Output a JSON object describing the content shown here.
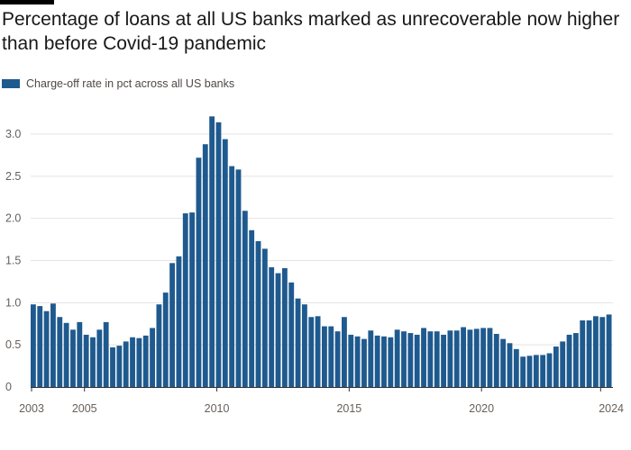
{
  "title": "Percentage of loans at all US banks marked as unrecoverable now higher than before Covid-19 pandemic",
  "accent_color": "#1f5a8f",
  "chart_data": {
    "type": "bar",
    "legend": "Charge-off rate in pct across all US banks",
    "legend_position": "top-left",
    "grid": true,
    "xlabel": "",
    "ylabel": "",
    "ylim": [
      0,
      3.2
    ],
    "yticks": [
      0,
      0.5,
      1.0,
      1.5,
      2.0,
      2.5,
      3.0
    ],
    "ytick_labels": [
      "0",
      "0.5",
      "1.0",
      "1.5",
      "2.0",
      "2.5",
      "3.0"
    ],
    "xticks": [
      {
        "year": 2003,
        "label": "2003"
      },
      {
        "year": 2005,
        "label": "2005"
      },
      {
        "year": 2010,
        "label": "2010"
      },
      {
        "year": 2015,
        "label": "2015"
      },
      {
        "year": 2020,
        "label": "2020"
      },
      {
        "year": 2024,
        "label": "2024"
      }
    ],
    "start_quarter": "2003 Q1",
    "series": [
      {
        "name": "Charge-off rate in pct across all US banks",
        "values": [
          0.98,
          0.96,
          0.9,
          0.99,
          0.83,
          0.76,
          0.68,
          0.77,
          0.62,
          0.59,
          0.68,
          0.77,
          0.47,
          0.49,
          0.54,
          0.59,
          0.58,
          0.61,
          0.7,
          0.98,
          1.12,
          1.47,
          1.55,
          2.06,
          2.07,
          2.72,
          2.88,
          3.21,
          3.14,
          2.94,
          2.62,
          2.58,
          2.09,
          1.86,
          1.73,
          1.64,
          1.42,
          1.35,
          1.41,
          1.24,
          1.05,
          0.98,
          0.83,
          0.84,
          0.72,
          0.72,
          0.66,
          0.83,
          0.62,
          0.6,
          0.57,
          0.67,
          0.61,
          0.6,
          0.59,
          0.68,
          0.66,
          0.64,
          0.62,
          0.7,
          0.66,
          0.66,
          0.62,
          0.67,
          0.67,
          0.71,
          0.68,
          0.69,
          0.7,
          0.7,
          0.63,
          0.57,
          0.52,
          0.45,
          0.36,
          0.37,
          0.38,
          0.38,
          0.4,
          0.48,
          0.54,
          0.62,
          0.64,
          0.79,
          0.79,
          0.84,
          0.83,
          0.86
        ]
      }
    ]
  }
}
